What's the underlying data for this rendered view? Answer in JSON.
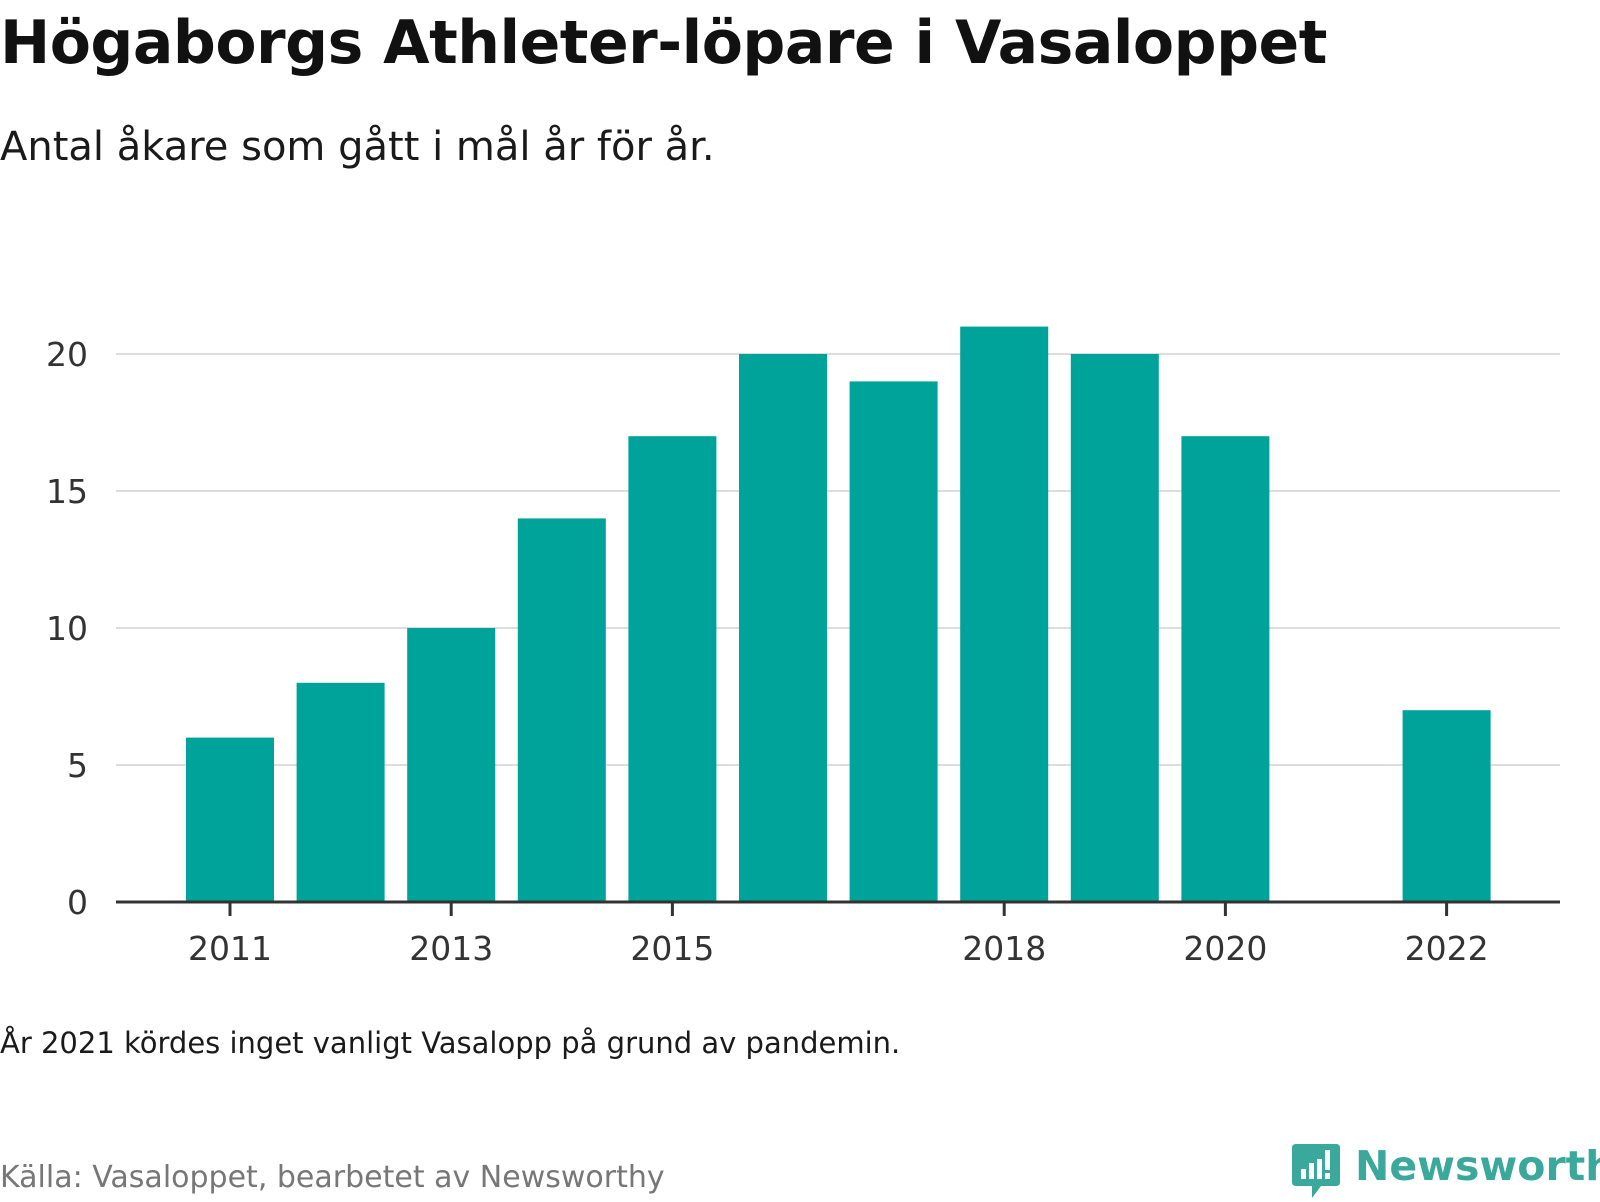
{
  "title": "Högaborgs Athleter-löpare i Vasaloppet",
  "subtitle": "Antal åkare som gått i mål år för år.",
  "note": "År 2021 kördes inget vanligt Vasalopp på grund av pandemin.",
  "source": "Källa: Vasaloppet, bearbetet av Newsworthy",
  "brand": {
    "name": "Newsworthy",
    "icon": "bar-chart-speech-bubble-icon",
    "color": "#3aa89b"
  },
  "chart_data": {
    "type": "bar",
    "categories": [
      "2011",
      "2012",
      "2013",
      "2014",
      "2015",
      "2016",
      "2017",
      "2018",
      "2019",
      "2020",
      "2021",
      "2022"
    ],
    "values": [
      6,
      8,
      10,
      14,
      17,
      20,
      19,
      21,
      20,
      17,
      null,
      7
    ],
    "y_ticks": [
      "0",
      "5",
      "10",
      "15",
      "20"
    ],
    "x_tick_labels": [
      "2011",
      "2013",
      "2015",
      "2018",
      "2020",
      "2022"
    ],
    "ylim": [
      0,
      21
    ],
    "xlabel": "",
    "ylabel": "",
    "grid": true,
    "legend": "none",
    "colors": {
      "bar": "#00a39a",
      "grid": "#dddddd",
      "axis": "#333333",
      "tick_text": "#333333"
    }
  }
}
